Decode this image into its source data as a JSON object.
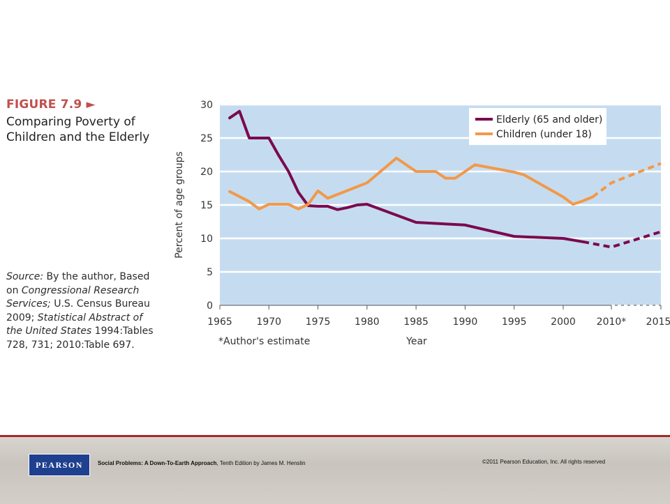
{
  "figure": {
    "label": "FIGURE 7.9 ►",
    "title_lines": [
      "Comparing Poverty of",
      "Children and the Elderly"
    ]
  },
  "source": {
    "line1": "Source: By the author, Based",
    "line2": "on Congressional Research",
    "line3": "Services; U.S. Census Bureau",
    "line4": "2009; Statistical Abstract of",
    "line5": "the United States 1994:Tables",
    "line6": "728, 731; 2010:Table 697."
  },
  "chart_data": {
    "type": "line",
    "title": "",
    "xlabel": "Year",
    "ylabel": "Percent of age groups",
    "ylim": [
      0,
      30
    ],
    "y_ticks": [
      0,
      5,
      10,
      15,
      20,
      25,
      30
    ],
    "x_ticks": [
      "1965",
      "1970",
      "1975",
      "1980",
      "1985",
      "1990",
      "1995",
      "2000",
      "2010*",
      "2015*"
    ],
    "x_footnote": "*Author's estimate",
    "grid": true,
    "legend_position": "top-right",
    "plot_background": "#c5dcf0",
    "series": [
      {
        "name": "Elderly (65 and older)",
        "color": "#7a0a4f",
        "points": [
          [
            "1966",
            28.0
          ],
          [
            "1967",
            29.0
          ],
          [
            "1968",
            25.0
          ],
          [
            "1969",
            25.0
          ],
          [
            "1970",
            25.0
          ],
          [
            "1971",
            22.4
          ],
          [
            "1972",
            20.0
          ],
          [
            "1973",
            16.9
          ],
          [
            "1974",
            14.9
          ],
          [
            "1975",
            14.8
          ],
          [
            "1976",
            14.8
          ],
          [
            "1977",
            14.3
          ],
          [
            "1978",
            14.6
          ],
          [
            "1979",
            15.0
          ],
          [
            "1980",
            15.1
          ],
          [
            "1985",
            12.4
          ],
          [
            "1990",
            12.0
          ],
          [
            "1995",
            10.3
          ],
          [
            "2000",
            10.0
          ],
          [
            "2002",
            9.5
          ]
        ],
        "projected": [
          [
            "2002",
            9.5
          ],
          [
            "2010*",
            8.7
          ],
          [
            "2015*",
            11.0
          ]
        ]
      },
      {
        "name": "Children (under 18)",
        "color": "#f2994a",
        "points": [
          [
            "1966",
            17.0
          ],
          [
            "1968",
            15.5
          ],
          [
            "1969",
            14.4
          ],
          [
            "1970",
            15.1
          ],
          [
            "1972",
            15.1
          ],
          [
            "1973",
            14.4
          ],
          [
            "1974",
            15.1
          ],
          [
            "1975",
            17.1
          ],
          [
            "1976",
            16.0
          ],
          [
            "1980",
            18.3
          ],
          [
            "1983",
            22.0
          ],
          [
            "1985",
            20.0
          ],
          [
            "1987",
            20.0
          ],
          [
            "1988",
            19.0
          ],
          [
            "1989",
            19.0
          ],
          [
            "1991",
            21.0
          ],
          [
            "1995",
            19.9
          ],
          [
            "1996",
            19.5
          ],
          [
            "2000",
            16.2
          ],
          [
            "2001",
            15.1
          ],
          [
            "2002",
            15.6
          ],
          [
            "2003",
            16.2
          ]
        ],
        "projected": [
          [
            "2003",
            16.2
          ],
          [
            "2010*",
            18.3
          ],
          [
            "2015*",
            21.2
          ]
        ]
      }
    ]
  },
  "footer": {
    "logo_text": "PEARSON",
    "book_title": "Social Problems: A Down-To-Earth Approach",
    "book_rest": ", Tenth Edition by James M. Henslin",
    "copyright": "©2011 Pearson Education, Inc.  All rights reserved"
  },
  "colors": {
    "accent": "#c0504d",
    "elderly": "#7a0a4f",
    "children": "#f2994a",
    "footer_rule": "#a52a2a",
    "pearson_blue": "#1f3f8f"
  }
}
